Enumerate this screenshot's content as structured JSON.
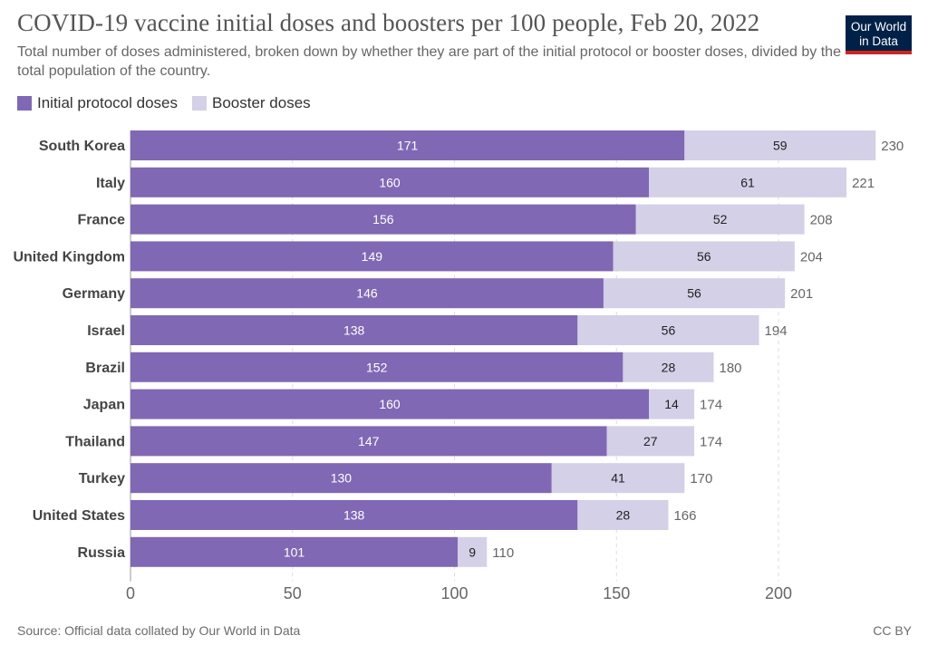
{
  "header": {
    "title": "COVID-19 vaccine initial doses and boosters per 100 people, Feb 20, 2022",
    "subtitle": "Total number of doses administered, broken down by whether they are part of the initial protocol or booster doses, divided by the total population of the country.",
    "logo_line1": "Our World",
    "logo_line2": "in Data"
  },
  "colors": {
    "initial": "#8068b4",
    "booster": "#d3d0e7",
    "logo_bg": "#002147",
    "logo_accent": "#ce261e"
  },
  "footer": {
    "source": "Source: Official data collated by Our World in Data",
    "license": "CC BY"
  },
  "chart_data": {
    "type": "bar",
    "orientation": "horizontal",
    "stacked": true,
    "title": "COVID-19 vaccine initial doses and boosters per 100 people, Feb 20, 2022",
    "categories": [
      "South Korea",
      "Italy",
      "France",
      "United Kingdom",
      "Germany",
      "Israel",
      "Brazil",
      "Japan",
      "Thailand",
      "Turkey",
      "United States",
      "Russia"
    ],
    "series": [
      {
        "name": "Initial protocol doses",
        "values": [
          171,
          160,
          156,
          149,
          146,
          138,
          152,
          160,
          147,
          130,
          138,
          101
        ]
      },
      {
        "name": "Booster doses",
        "values": [
          59,
          61,
          52,
          56,
          56,
          56,
          28,
          14,
          27,
          41,
          28,
          9
        ]
      }
    ],
    "totals": [
      230,
      221,
      208,
      204,
      201,
      194,
      180,
      174,
      174,
      170,
      166,
      110
    ],
    "x_ticks": [
      0,
      50,
      100,
      150,
      200
    ],
    "xlim": [
      0,
      230
    ],
    "grid": "vertical dashed",
    "legend": "top-left"
  }
}
